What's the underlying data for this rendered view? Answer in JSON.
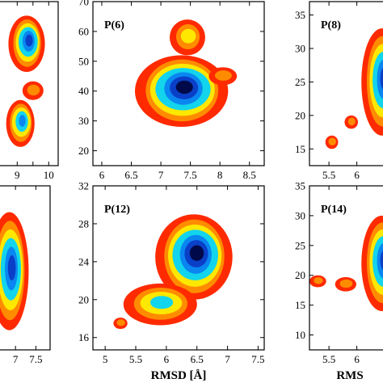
{
  "colors": {
    "level_1": "#ff2a00",
    "level_2": "#ff8c00",
    "level_3": "#ffe800",
    "level_4": "#12d4ec",
    "level_5": "#0a86f0",
    "level_6": "#0a3fc8",
    "level_7": "#000a4a",
    "axis": "#000000",
    "background": "#ffffff"
  },
  "figure": {
    "shared_xlabel": "RMSD [Å]"
  },
  "chart_data": [
    {
      "type": "heatmap",
      "panel_label": "",
      "xlim": [
        8.3,
        10.3
      ],
      "ylim": [
        10,
        80
      ],
      "xticks": [
        9,
        9.5,
        10
      ],
      "xtick_labels": [
        "9",
        "",
        "10"
      ],
      "yticks": [],
      "ytick_labels": [],
      "xlabel": "",
      "blobs": [
        {
          "cx": 9.3,
          "cy": 62,
          "rx": 0.55,
          "ry": 12,
          "peak": 6
        },
        {
          "cx": 9.1,
          "cy": 28,
          "rx": 0.45,
          "ry": 10,
          "peak": 5
        },
        {
          "cx": 9.5,
          "cy": 42,
          "rx": 0.35,
          "ry": 4,
          "peak": 2
        }
      ]
    },
    {
      "type": "heatmap",
      "panel_label": "P(6)",
      "xlim": [
        5.85,
        8.75
      ],
      "ylim": [
        15,
        70
      ],
      "xticks": [
        6,
        6.5,
        7,
        7.5,
        8,
        8.5
      ],
      "xtick_labels": [
        "6",
        "6.5",
        "7",
        "7.5",
        "8",
        "8.5"
      ],
      "yticks": [
        20,
        30,
        40,
        50,
        60,
        70
      ],
      "ytick_labels": [
        "20",
        "30",
        "40",
        "50",
        "60",
        "70"
      ],
      "xlabel": "",
      "blobs": [
        {
          "cx": 7.35,
          "cy": 40,
          "rx": 0.75,
          "ry": 12,
          "peak": 7
        },
        {
          "cx": 7.45,
          "cy": 58,
          "rx": 0.3,
          "ry": 6,
          "peak": 3
        },
        {
          "cx": 8.05,
          "cy": 45,
          "rx": 0.25,
          "ry": 3,
          "peak": 2
        }
      ]
    },
    {
      "type": "heatmap",
      "panel_label": "P(8)",
      "xlim": [
        5.15,
        6.6
      ],
      "ylim": [
        12.5,
        37
      ],
      "xticks": [
        5.5,
        6
      ],
      "xtick_labels": [
        "5.5",
        "6"
      ],
      "yticks": [
        15,
        20,
        25,
        30,
        35
      ],
      "ytick_labels": [
        "15",
        "20",
        "25",
        "30",
        "35"
      ],
      "xlabel": "",
      "blobs": [
        {
          "cx": 6.45,
          "cy": 25,
          "rx": 0.35,
          "ry": 8,
          "peak": 6
        },
        {
          "cx": 5.9,
          "cy": 19,
          "rx": 0.12,
          "ry": 1,
          "peak": 2
        },
        {
          "cx": 5.55,
          "cy": 16,
          "rx": 0.12,
          "ry": 1,
          "peak": 2
        }
      ]
    },
    {
      "type": "heatmap",
      "panel_label": "",
      "xlim": [
        6.5,
        7.85
      ],
      "ylim": [
        10,
        35
      ],
      "xticks": [
        7,
        7.5
      ],
      "xtick_labels": [
        "7",
        "7.5"
      ],
      "yticks": [],
      "ytick_labels": [],
      "xlabel": "",
      "blobs": [
        {
          "cx": 6.85,
          "cy": 22,
          "rx": 0.45,
          "ry": 9,
          "peak": 6
        }
      ]
    },
    {
      "type": "heatmap",
      "panel_label": "P(12)",
      "xlim": [
        4.8,
        7.6
      ],
      "ylim": [
        14.7,
        32
      ],
      "xticks": [
        5,
        5.5,
        6,
        6.5,
        7,
        7.5
      ],
      "xtick_labels": [
        "5",
        "5.5",
        "6",
        "6.5",
        "7",
        "7.5"
      ],
      "yticks": [
        16,
        20,
        24,
        28,
        32
      ],
      "ytick_labels": [
        "16",
        "20",
        "24",
        "28",
        "32"
      ],
      "xlabel": "RMSD [Å]",
      "blobs": [
        {
          "cx": 6.45,
          "cy": 24.5,
          "rx": 0.6,
          "ry": 4.5,
          "peak": 7
        },
        {
          "cx": 5.9,
          "cy": 19.5,
          "rx": 0.6,
          "ry": 2.2,
          "peak": 4
        },
        {
          "cx": 5.25,
          "cy": 17.5,
          "rx": 0.12,
          "ry": 0.6,
          "peak": 2
        }
      ]
    },
    {
      "type": "heatmap",
      "panel_label": "P(14)",
      "xlim": [
        5.15,
        6.6
      ],
      "ylim": [
        7.5,
        35
      ],
      "xticks": [
        5.5,
        6
      ],
      "xtick_labels": [
        "5.5",
        "6"
      ],
      "yticks": [
        10,
        15,
        20,
        25,
        30,
        35
      ],
      "ytick_labels": [
        "10",
        "15",
        "20",
        "25",
        "30",
        "35"
      ],
      "xlabel": "RMS",
      "blobs": [
        {
          "cx": 6.45,
          "cy": 22,
          "rx": 0.35,
          "ry": 8,
          "peak": 6
        },
        {
          "cx": 5.3,
          "cy": 19,
          "rx": 0.15,
          "ry": 1,
          "peak": 2
        },
        {
          "cx": 5.8,
          "cy": 18.5,
          "rx": 0.2,
          "ry": 1.2,
          "peak": 2
        }
      ]
    }
  ]
}
